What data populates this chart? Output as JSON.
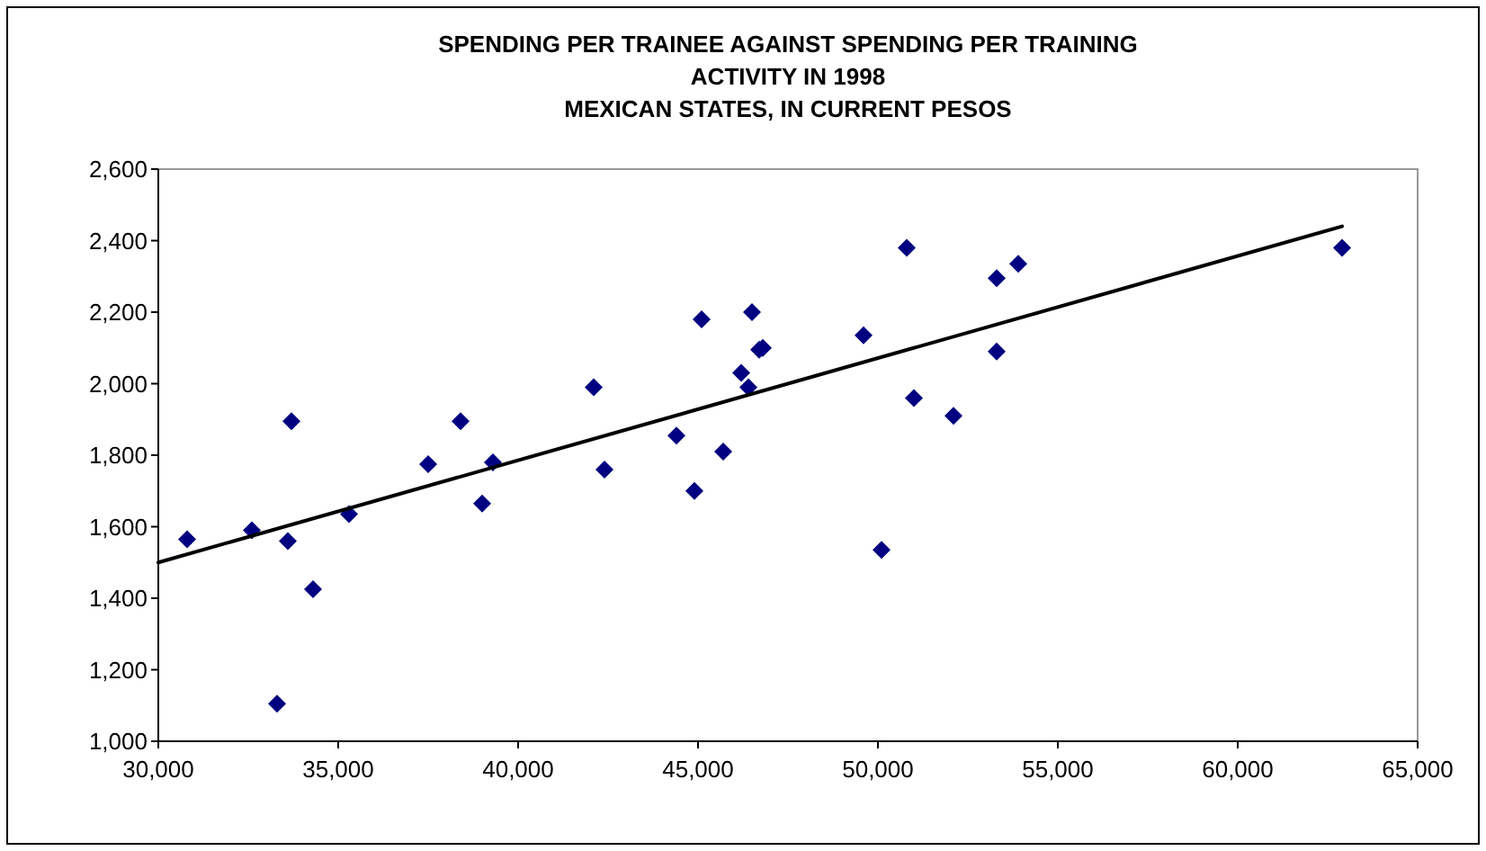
{
  "chart_data": {
    "type": "scatter",
    "title": "SPENDING PER TRAINEE AGAINST SPENDING PER TRAINING\nACTIVITY IN 1998\nMEXICAN STATES, IN CURRENT PESOS",
    "xlim": [
      30000,
      65000
    ],
    "xticks": [
      {
        "value": 30000,
        "label": "30,000"
      },
      {
        "value": 35000,
        "label": "35,000"
      },
      {
        "value": 40000,
        "label": "40,000"
      },
      {
        "value": 45000,
        "label": "45,000"
      },
      {
        "value": 50000,
        "label": "50,000"
      },
      {
        "value": 55000,
        "label": "55,000"
      },
      {
        "value": 60000,
        "label": "60,000"
      },
      {
        "value": 65000,
        "label": "65,000"
      }
    ],
    "ylim": [
      1000,
      2600
    ],
    "yticks": [
      {
        "value": 1000,
        "label": "1,000"
      },
      {
        "value": 1200,
        "label": "1,200"
      },
      {
        "value": 1400,
        "label": "1,400"
      },
      {
        "value": 1600,
        "label": "1,600"
      },
      {
        "value": 1800,
        "label": "1,800"
      },
      {
        "value": 2000,
        "label": "2,000"
      },
      {
        "value": 2200,
        "label": "2,200"
      },
      {
        "value": 2400,
        "label": "2,400"
      },
      {
        "value": 2600,
        "label": "2,600"
      }
    ],
    "grid": false,
    "series": [
      {
        "color": "#000080",
        "marker": "diamond",
        "x": [
          30800,
          32600,
          33600,
          33700,
          34300,
          33300,
          35300,
          37500,
          38400,
          39000,
          39300,
          42100,
          42400,
          44400,
          44900,
          45100,
          45700,
          46200,
          46400,
          46500,
          46700,
          46800,
          49600,
          50100,
          50800,
          51000,
          52100,
          53300,
          53300,
          53900,
          62900
        ],
        "values": [
          1565,
          1590,
          1560,
          1895,
          1425,
          1105,
          1635,
          1775,
          1895,
          1665,
          1780,
          1990,
          1760,
          1855,
          1700,
          2180,
          1810,
          2030,
          1990,
          2200,
          2095,
          2100,
          2135,
          1535,
          2380,
          1960,
          1910,
          2090,
          2295,
          2335,
          2380
        ]
      },
      {
        "type": "line",
        "color": "#000000",
        "line_style": "solid",
        "x": [
          30000,
          62900
        ],
        "values": [
          1500,
          2440
        ]
      }
    ]
  }
}
